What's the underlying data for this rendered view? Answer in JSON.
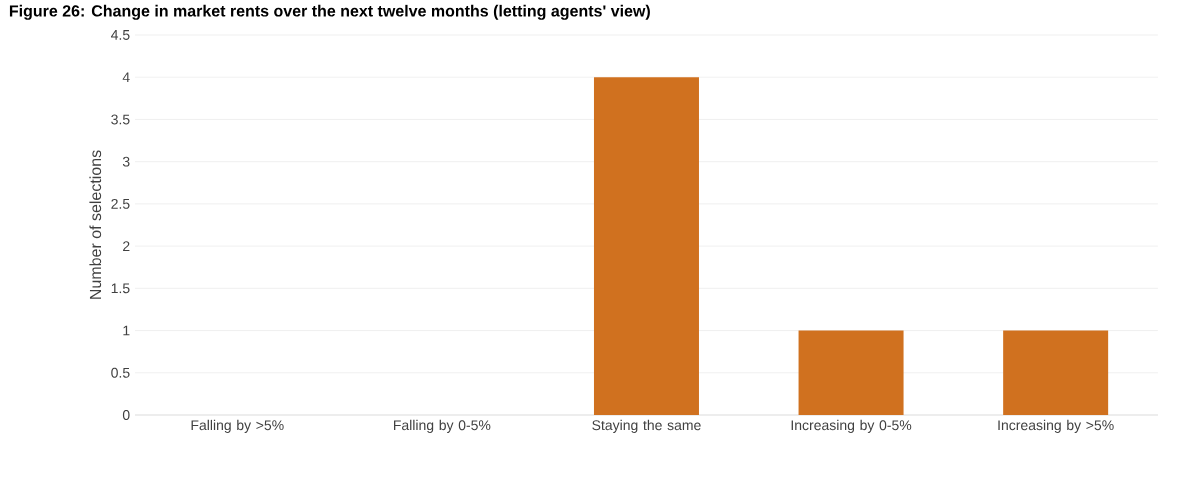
{
  "chart_data": {
    "type": "bar",
    "title": "Figure 26: Change in market rents over the next twelve months (letting agents' view)",
    "ylabel": "Number of selections",
    "categories": [
      "Falling by >5%",
      "Falling by 0-5%",
      "Staying the same",
      "Increasing by 0-5%",
      "Increasing by >5%"
    ],
    "values": [
      0,
      0,
      4,
      1,
      1
    ],
    "color": "#d0711f",
    "ylim": [
      0,
      4.5
    ],
    "yticks": [
      0,
      0.5,
      1,
      1.5,
      2,
      2.5,
      3,
      3.5,
      4,
      4.5
    ],
    "grid": "y"
  }
}
